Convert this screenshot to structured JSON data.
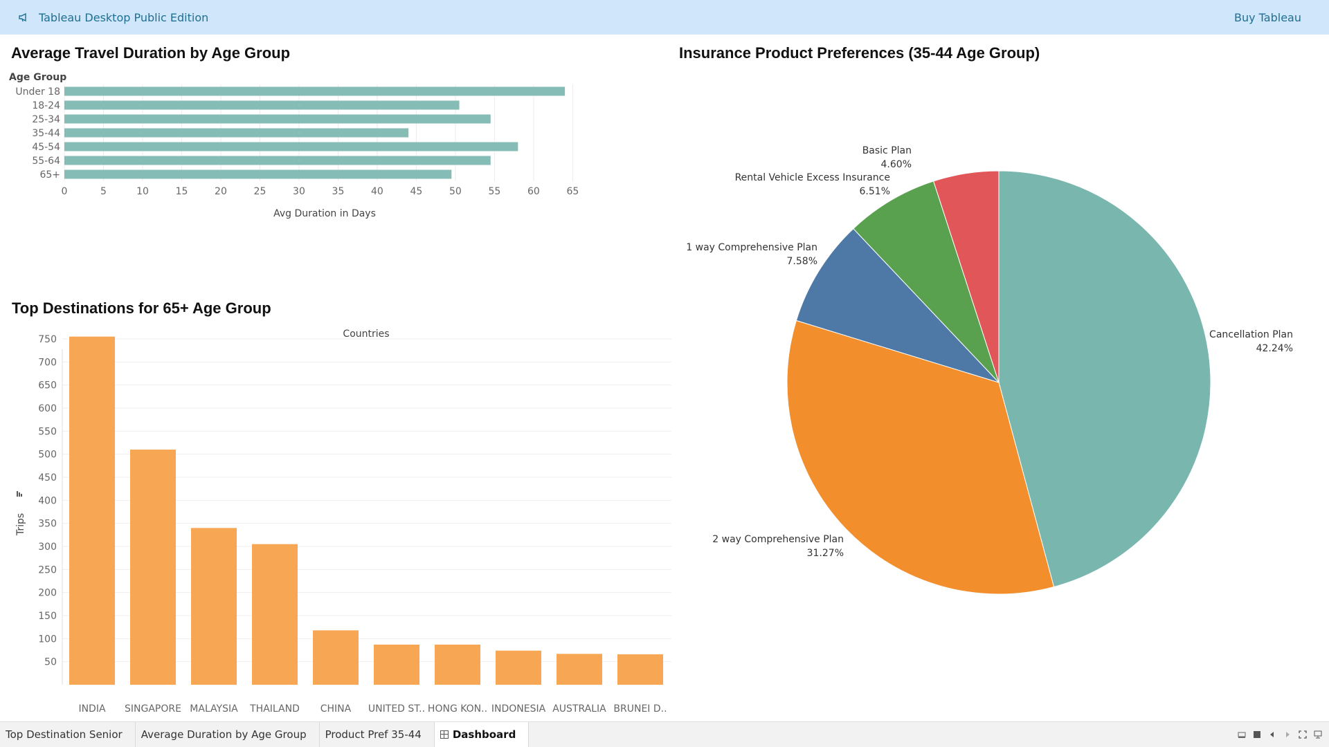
{
  "topbar": {
    "app_title": "Tableau Desktop Public Edition",
    "buy_label": "Buy Tableau",
    "accent_color": "#1f6f92",
    "background_color": "#cfe6fb",
    "icon": "megaphone-icon"
  },
  "charts": {
    "duration": {
      "title": "Average Travel Duration by Age Group",
      "row_header": "Age Group",
      "xlabel": "Avg Duration in Days"
    },
    "destinations": {
      "title": "Top Destinations for 65+ Age Group",
      "column_header": "Countries",
      "ylabel": "Trips"
    },
    "products": {
      "title": "Insurance Product Preferences (35-44 Age Group)"
    }
  },
  "chart_data": [
    {
      "type": "bar",
      "orientation": "horizontal",
      "categories": [
        "Under 18",
        "18-24",
        "25-34",
        "35-44",
        "45-54",
        "55-64",
        "65+"
      ],
      "values": [
        64,
        50.5,
        54.5,
        44,
        58,
        54.5,
        49.5
      ],
      "xlim": [
        0,
        67
      ],
      "xticks": [
        0,
        5,
        10,
        15,
        20,
        25,
        30,
        35,
        40,
        45,
        50,
        55,
        60,
        65
      ],
      "grid": true,
      "color": "#86bcb6"
    },
    {
      "type": "bar",
      "orientation": "vertical",
      "categories": [
        "INDIA",
        "SINGAPORE",
        "MALAYSIA",
        "THAILAND",
        "CHINA",
        "UNITED ST..",
        "HONG KON..",
        "INDONESIA",
        "AUSTRALIA",
        "BRUNEI D.."
      ],
      "values": [
        755,
        510,
        340,
        305,
        118,
        87,
        87,
        74,
        67,
        66
      ],
      "ylim": [
        0,
        780
      ],
      "yticks": [
        50,
        100,
        150,
        200,
        250,
        300,
        350,
        400,
        450,
        500,
        550,
        600,
        650,
        700,
        750
      ],
      "grid": true,
      "sorted": "descending",
      "color": "#f7a654"
    },
    {
      "type": "pie",
      "slices": [
        {
          "name": "Cancellation Plan",
          "value": 42.24,
          "label": "42.24%",
          "color": "#79b6ae"
        },
        {
          "name": "2 way Comprehensive Plan",
          "value": 31.27,
          "label": "31.27%",
          "color": "#f28e2c"
        },
        {
          "name": "1 way Comprehensive Plan",
          "value": 7.58,
          "label": "7.58%",
          "color": "#4e79a7"
        },
        {
          "name": "Rental Vehicle Excess Insurance",
          "value": 6.51,
          "label": "6.51%",
          "color": "#59a14f"
        },
        {
          "name": "Basic Plan",
          "value": 4.6,
          "label": "4.60%",
          "color": "#e15759"
        }
      ]
    }
  ],
  "tabs": [
    {
      "label": "Top Destination Senior",
      "active": false
    },
    {
      "label": "Average Duration by Age Group",
      "active": false
    },
    {
      "label": "Product Pref 35-44",
      "active": false
    },
    {
      "label": "Dashboard",
      "active": true
    }
  ]
}
